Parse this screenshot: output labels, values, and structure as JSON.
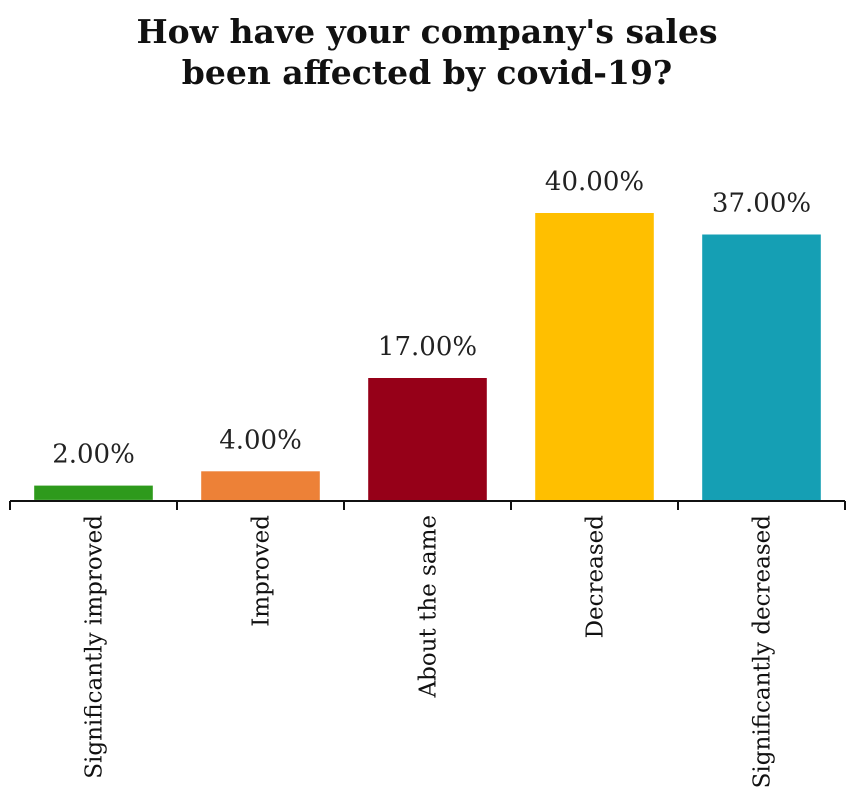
{
  "chart_data": {
    "type": "bar",
    "title": "How have your company's sales been affected by covid-19?",
    "title_lines": [
      "How have your company's sales",
      "been affected by covid-19?"
    ],
    "categories": [
      "Significantly improved",
      "Improved",
      "About the same",
      "Decreased",
      "Significantly decreased"
    ],
    "values": [
      2,
      4,
      17,
      40,
      37
    ],
    "value_labels": [
      "2.00%",
      "4.00%",
      "17.00%",
      "40.00%",
      "37.00%"
    ],
    "colors": [
      "#2e9a1c",
      "#ed8137",
      "#960018",
      "#ffbf00",
      "#159fb4"
    ],
    "xlabel": "",
    "ylabel": "",
    "ylim": [
      0,
      40
    ],
    "grid": false,
    "legend": "none"
  }
}
